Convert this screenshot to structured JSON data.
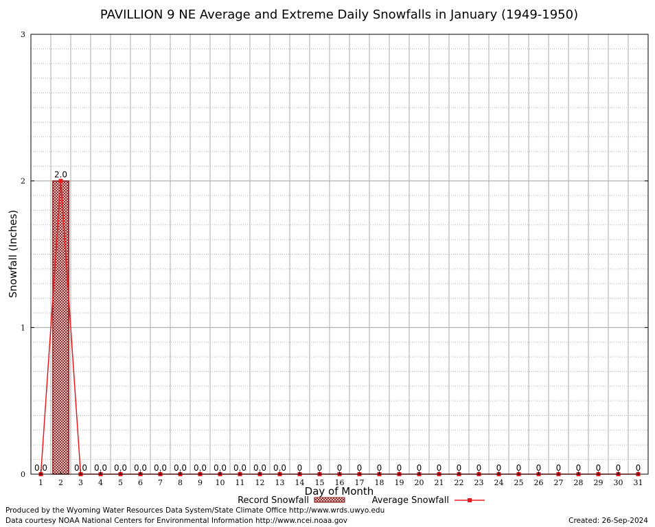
{
  "chart_data": {
    "type": "bar",
    "title": "PAVILLION 9 NE Average and Extreme Daily Snowfalls in January (1949-1950)",
    "xlabel": "Day of Month",
    "ylabel": "Snowfall (Inches)",
    "ylim": [
      0,
      3
    ],
    "yticks": [
      "0",
      "1",
      "2",
      "3"
    ],
    "categories": [
      "1",
      "2",
      "3",
      "4",
      "5",
      "6",
      "7",
      "8",
      "9",
      "10",
      "11",
      "12",
      "13",
      "14",
      "15",
      "16",
      "17",
      "18",
      "19",
      "20",
      "21",
      "22",
      "23",
      "24",
      "25",
      "26",
      "27",
      "28",
      "29",
      "30",
      "31"
    ],
    "series": [
      {
        "name": "Record Snowfall",
        "type": "bar",
        "color": "#8b1a1a",
        "values": [
          0,
          2,
          0,
          0,
          0,
          0,
          0,
          0,
          0,
          0,
          0,
          0,
          0,
          0,
          0,
          0,
          0,
          0,
          0,
          0,
          0,
          0,
          0,
          0,
          0,
          0,
          0,
          0,
          0,
          0,
          0
        ]
      },
      {
        "name": "Average Snowfall",
        "type": "line",
        "color": "#e8191c",
        "values": [
          0,
          2,
          0,
          0,
          0,
          0,
          0,
          0,
          0,
          0,
          0,
          0,
          0,
          0,
          0,
          0,
          0,
          0,
          0,
          0,
          0,
          0,
          0,
          0,
          0,
          0,
          0,
          0,
          0,
          0,
          0
        ]
      }
    ],
    "data_labels": [
      "0.0",
      "2.0",
      "0.0",
      "0.0",
      "0.0",
      "0.0",
      "0.0",
      "0.0",
      "0.0",
      "0.0",
      "0.0",
      "0.0",
      "0.0",
      "0",
      "0",
      "0",
      "0",
      "0",
      "0",
      "0",
      "0",
      "0",
      "0",
      "0",
      "0",
      "0",
      "0",
      "0",
      "0",
      "0",
      "0"
    ],
    "grid": true,
    "legend_position": "bottom"
  },
  "footer": {
    "line1": "Produced by the Wyoming Water Resources Data System/State Climate Office http://www.wrds.uwyo.edu",
    "line2": "Data courtesy NOAA National Centers for Environmental Information http://www.ncei.noaa.gov",
    "created": "Created: 26-Sep-2024"
  }
}
